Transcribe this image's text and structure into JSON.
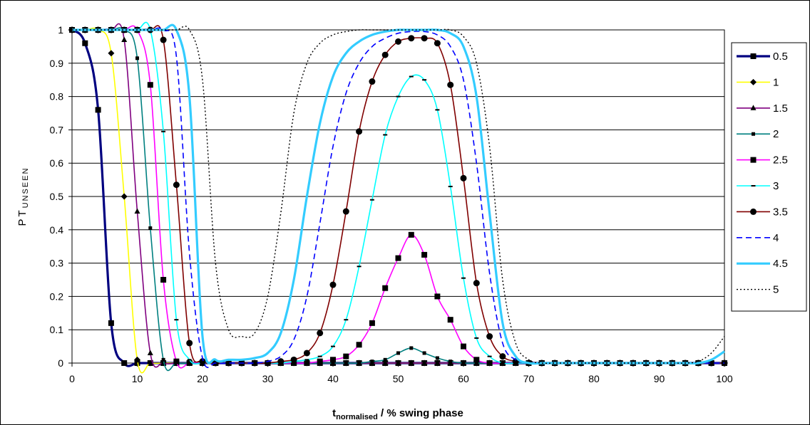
{
  "chart_data": {
    "type": "line",
    "title": "",
    "ylabel_main": "PT",
    "ylabel_sub": "UNSEEN",
    "xlabel_main": "t",
    "xlabel_sub": "normalised",
    "xlabel_rest": " / % swing phase",
    "xlim": [
      0,
      100
    ],
    "ylim": [
      0,
      1
    ],
    "xticks": [
      "0",
      "10",
      "20",
      "30",
      "40",
      "50",
      "60",
      "70",
      "80",
      "90",
      "100"
    ],
    "yticks": [
      "0",
      "0.1",
      "0.2",
      "0.3",
      "0.4",
      "0.5",
      "0.6",
      "0.7",
      "0.8",
      "0.9",
      "1"
    ],
    "grid": "horizontal",
    "legend_position": "right",
    "x": [
      0,
      2,
      4,
      6,
      8,
      10,
      12,
      14,
      16,
      18,
      20,
      22,
      24,
      26,
      28,
      30,
      32,
      34,
      36,
      38,
      40,
      42,
      44,
      46,
      48,
      50,
      52,
      54,
      56,
      58,
      60,
      62,
      64,
      66,
      68,
      70,
      72,
      74,
      76,
      78,
      80,
      82,
      84,
      86,
      88,
      90,
      92,
      94,
      96,
      98,
      100
    ],
    "series": [
      {
        "name": "0.5",
        "color": "#000080",
        "width": 3.2,
        "dash": "",
        "marker": "square",
        "values": [
          1,
          0.96,
          0.76,
          0.12,
          0,
          0,
          0,
          0,
          0,
          0,
          0,
          0,
          0,
          0,
          0,
          0,
          0,
          0,
          0,
          0,
          0,
          0,
          0,
          0,
          0,
          0,
          0,
          0,
          0,
          0,
          0,
          0,
          0,
          0,
          0,
          0,
          0,
          0,
          0,
          0,
          0,
          0,
          0,
          0,
          0,
          0,
          0,
          0,
          0,
          0,
          0
        ]
      },
      {
        "name": "1",
        "color": "#ffff00",
        "width": 1.6,
        "dash": "",
        "marker": "diamond",
        "values": [
          1,
          1,
          1,
          0.93,
          0.5,
          0.01,
          0,
          0,
          0,
          0,
          0,
          0,
          0,
          0,
          0,
          0,
          0,
          0,
          0,
          0,
          0,
          0,
          0,
          0,
          0,
          0,
          0,
          0,
          0,
          0,
          0,
          0,
          0,
          0,
          0,
          0,
          0,
          0,
          0,
          0,
          0,
          0,
          0,
          0,
          0,
          0,
          0,
          0,
          0,
          0,
          0
        ]
      },
      {
        "name": "1.5",
        "color": "#800080",
        "width": 1.6,
        "dash": "",
        "marker": "triangle",
        "values": [
          1,
          1,
          1,
          1,
          0.97,
          0.455,
          0.03,
          0,
          0,
          0,
          0,
          0,
          0,
          0,
          0,
          0,
          0,
          0,
          0,
          0,
          0,
          0,
          0,
          0,
          0,
          0,
          0,
          0,
          0,
          0,
          0,
          0,
          0,
          0,
          0,
          0,
          0,
          0,
          0,
          0,
          0,
          0,
          0,
          0,
          0,
          0,
          0,
          0,
          0,
          0,
          0
        ]
      },
      {
        "name": "2",
        "color": "#008080",
        "width": 1.6,
        "dash": "",
        "marker": "smallsquare",
        "values": [
          1,
          1,
          1,
          1,
          1,
          0.915,
          0.405,
          0.01,
          0,
          0,
          0,
          0,
          0,
          0,
          0,
          0,
          0,
          0,
          0,
          0,
          0,
          0,
          0,
          0.005,
          0.01,
          0.03,
          0.045,
          0.03,
          0.015,
          0.005,
          0,
          0,
          0,
          0,
          0,
          0,
          0,
          0,
          0,
          0,
          0,
          0,
          0,
          0,
          0,
          0,
          0,
          0,
          0,
          0,
          0
        ]
      },
      {
        "name": "2.5",
        "color": "#ff00ff",
        "width": 1.6,
        "dash": "",
        "marker": "square",
        "values": [
          1,
          1,
          1,
          1,
          1,
          1,
          0.835,
          0.25,
          0.005,
          0,
          0,
          0,
          0,
          0,
          0,
          0,
          0,
          0,
          0,
          0.005,
          0.01,
          0.02,
          0.055,
          0.12,
          0.225,
          0.315,
          0.385,
          0.325,
          0.2,
          0.13,
          0.05,
          0.01,
          0,
          0,
          0,
          0,
          0,
          0,
          0,
          0,
          0,
          0,
          0,
          0,
          0,
          0,
          0,
          0,
          0,
          0,
          0
        ]
      },
      {
        "name": "3",
        "color": "#00ffff",
        "width": 1.6,
        "dash": "",
        "marker": "dash",
        "values": [
          1,
          1,
          1,
          1,
          1,
          1,
          1,
          0.695,
          0.13,
          0.01,
          0,
          0,
          0,
          0,
          0,
          0,
          0,
          0.005,
          0.01,
          0.02,
          0.05,
          0.13,
          0.29,
          0.49,
          0.685,
          0.8,
          0.86,
          0.85,
          0.76,
          0.53,
          0.255,
          0.075,
          0.02,
          0,
          0,
          0,
          0,
          0,
          0,
          0,
          0,
          0,
          0,
          0,
          0,
          0,
          0,
          0,
          0,
          0,
          0
        ]
      },
      {
        "name": "3.5",
        "color": "#800000",
        "width": 1.6,
        "dash": "",
        "marker": "circle",
        "values": [
          1,
          1,
          1,
          1,
          1,
          1,
          1,
          0.97,
          0.535,
          0.06,
          0.005,
          0,
          0,
          0,
          0,
          0,
          0.005,
          0.01,
          0.03,
          0.09,
          0.235,
          0.455,
          0.695,
          0.845,
          0.925,
          0.965,
          0.975,
          0.975,
          0.96,
          0.835,
          0.555,
          0.24,
          0.08,
          0.02,
          0.005,
          0,
          0,
          0,
          0,
          0,
          0,
          0,
          0,
          0,
          0,
          0,
          0,
          0,
          0,
          0,
          0
        ]
      },
      {
        "name": "4",
        "color": "#0000ff",
        "width": 1.6,
        "dash": "8,5",
        "marker": "none",
        "values": [
          1,
          1,
          1,
          1,
          1,
          1,
          1,
          1,
          0.92,
          0.33,
          0.015,
          0,
          0,
          0,
          0,
          0.005,
          0.02,
          0.07,
          0.2,
          0.42,
          0.65,
          0.81,
          0.9,
          0.95,
          0.975,
          0.99,
          0.995,
          0.995,
          0.985,
          0.95,
          0.85,
          0.6,
          0.27,
          0.06,
          0.01,
          0,
          0,
          0,
          0,
          0,
          0,
          0,
          0,
          0,
          0,
          0,
          0,
          0,
          0,
          0,
          0
        ]
      },
      {
        "name": "4.5",
        "color": "#33ccff",
        "width": 3.2,
        "dash": "",
        "marker": "none",
        "values": [
          1,
          1,
          1,
          1,
          1,
          1,
          1,
          1,
          1,
          0.8,
          0.08,
          0.01,
          0.01,
          0.01,
          0.015,
          0.03,
          0.09,
          0.25,
          0.5,
          0.72,
          0.86,
          0.93,
          0.965,
          0.985,
          0.995,
          1,
          1,
          1,
          1,
          0.99,
          0.95,
          0.8,
          0.45,
          0.12,
          0.02,
          0,
          0,
          0,
          0,
          0,
          0,
          0,
          0,
          0,
          0,
          0,
          0,
          0,
          0,
          0.01,
          0.035
        ]
      },
      {
        "name": "5",
        "color": "#000000",
        "width": 1.4,
        "dash": "2,3",
        "marker": "none",
        "values": [
          1,
          1,
          1,
          1,
          1,
          1,
          1,
          1,
          1,
          1,
          0.85,
          0.3,
          0.1,
          0.08,
          0.09,
          0.2,
          0.45,
          0.75,
          0.9,
          0.96,
          0.985,
          0.995,
          1,
          1,
          1,
          1,
          1,
          1,
          1,
          1,
          0.98,
          0.9,
          0.65,
          0.25,
          0.06,
          0.01,
          0,
          0,
          0,
          0,
          0,
          0,
          0,
          0,
          0,
          0,
          0,
          0,
          0.005,
          0.03,
          0.08
        ]
      }
    ]
  }
}
